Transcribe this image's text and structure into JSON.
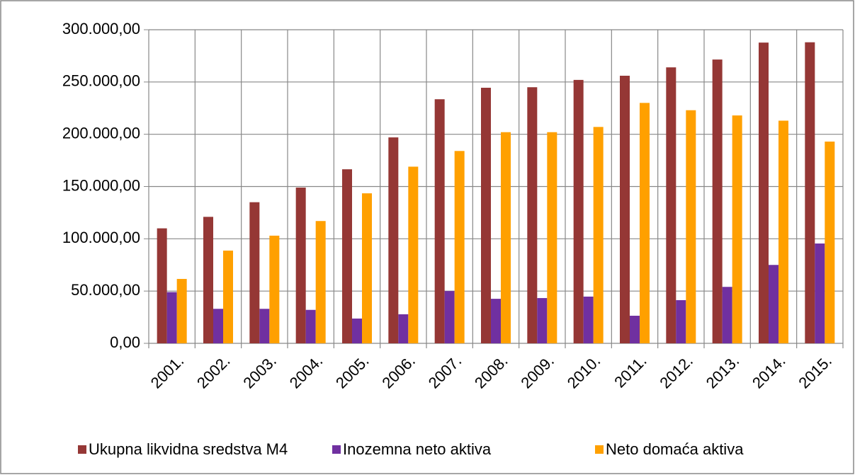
{
  "chart_data": {
    "type": "bar",
    "categories": [
      "2001.",
      "2002.",
      "2003.",
      "2004.",
      "2005.",
      "2006.",
      "2007.",
      "2008.",
      "2009.",
      "2010.",
      "2011.",
      "2012.",
      "2013.",
      "2014.",
      "2015."
    ],
    "series": [
      {
        "name": "Ukupna likvidna sredstva M4",
        "color": "#953735",
        "values": [
          110000,
          121000,
          135000,
          149000,
          166500,
          197000,
          233500,
          244500,
          245000,
          252000,
          256000,
          264000,
          271500,
          287700,
          288000
        ]
      },
      {
        "name": "Inozemna neto aktiva",
        "color": "#7030a0",
        "values": [
          49000,
          33000,
          33000,
          32000,
          23700,
          27800,
          50000,
          42600,
          43300,
          44700,
          26400,
          41300,
          54000,
          75000,
          95500
        ]
      },
      {
        "name": "Neto domaća aktiva",
        "color": "#ffa000",
        "values": [
          61600,
          88700,
          103000,
          117000,
          143500,
          169000,
          184000,
          202000,
          202000,
          207000,
          230000,
          223000,
          218000,
          213000,
          193000
        ]
      }
    ],
    "ylim": [
      0,
      300000
    ],
    "yticks": [
      {
        "value": 0,
        "label": "0,00"
      },
      {
        "value": 50000,
        "label": "50.000,00"
      },
      {
        "value": 100000,
        "label": "100.000,00"
      },
      {
        "value": 150000,
        "label": "150.000,00"
      },
      {
        "value": 200000,
        "label": "200.000,00"
      },
      {
        "value": 250000,
        "label": "250.000,00"
      },
      {
        "value": 300000,
        "label": "300.000,00"
      }
    ],
    "grid": true,
    "legend": "bottom"
  }
}
